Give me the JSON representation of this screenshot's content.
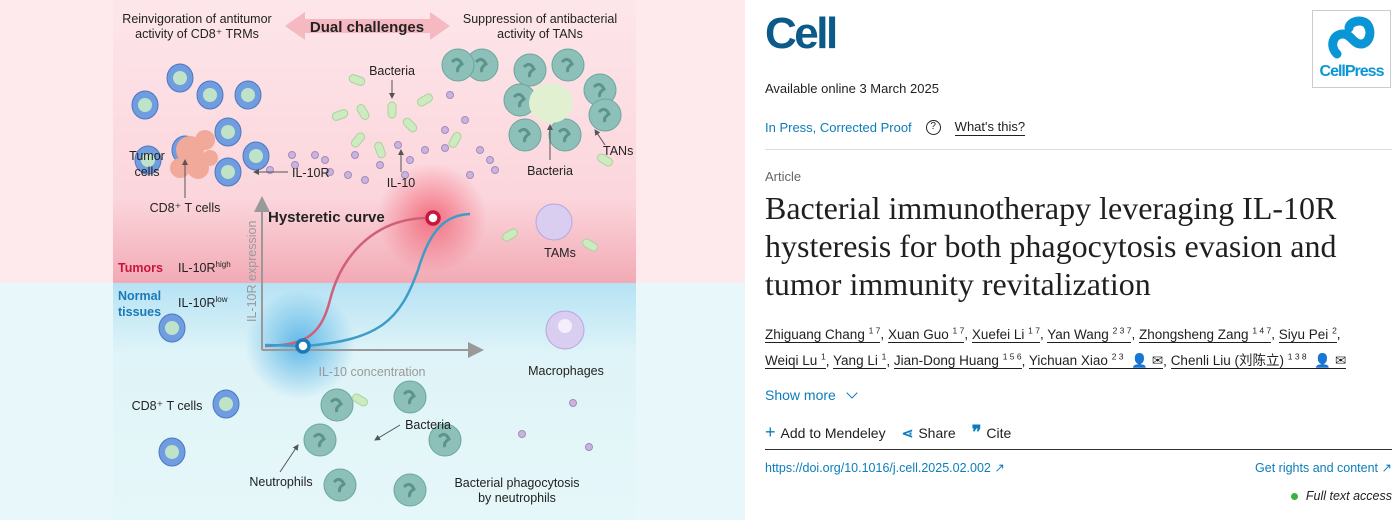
{
  "abstract": {
    "labels": {
      "left_heading_1": "Reinvigoration of antitumor",
      "left_heading_2": "activity of CD8⁺ TRMs",
      "center_heading": "Dual challenges",
      "right_heading_1": "Suppression of antibacterial",
      "right_heading_2": "activity of TANs",
      "bacteria_top": "Bacteria",
      "tumor_cells_1": "Tumor",
      "tumor_cells_2": "cells",
      "il10r": "IL-10R",
      "il10": "IL-10",
      "cd8_t_cells_top": "CD8⁺ T cells",
      "bacteria_tans": "Bacteria",
      "tans": "TANs",
      "tams": "TAMs",
      "hysteretic_curve": "Hysteretic curve",
      "y_axis": "IL-10R expression",
      "x_axis": "IL-10 concentration",
      "tumors": "Tumors",
      "il10r_high": "IL-10R",
      "il10r_high_sup": "high",
      "normal_1": "Normal",
      "normal_2": "tissues",
      "il10r_low": "IL-10R",
      "il10r_low_sup": "low",
      "macrophages": "Macrophages",
      "cd8_t_cells_bottom": "CD8⁺ T cells",
      "bacteria_bottom": "Bacteria",
      "neutrophils": "Neutrophils",
      "phagocytosis_1": "Bacterial phagocytosis",
      "phagocytosis_2": "by neutrophils"
    },
    "colors": {
      "tumor": "#c8163c",
      "normal": "#1a7ab8",
      "red_curve": "#d0607a",
      "blue_curve": "#3d9cc8"
    }
  },
  "journal": {
    "logo": "Cell",
    "publisher_logo": "CellPress",
    "logo_color": "#0b5a8a",
    "publisher_color": "#0a96d6"
  },
  "article": {
    "available": "Available online 3 March 2025",
    "status": "In Press, Corrected Proof",
    "help_icon": "question-circle-icon",
    "whats_this": "What's this?",
    "type": "Article",
    "title_lines": [
      "Bacterial immunotherapy leveraging IL-10R",
      "hysteresis for both phagocytosis evasion and",
      "tumor immunity revitalization"
    ],
    "authors": [
      {
        "name": "Zhiguang Chang",
        "sup": "1 7"
      },
      {
        "name": "Xuan Guo",
        "sup": "1 7"
      },
      {
        "name": "Xuefei Li",
        "sup": "1 7"
      },
      {
        "name": "Yan Wang",
        "sup": "2 3 7"
      },
      {
        "name": "Zhongsheng Zang",
        "sup": "1 4 7"
      },
      {
        "name": "Siyu Pei",
        "sup": "2"
      },
      {
        "name": "Weiqi Lu",
        "sup": "1"
      },
      {
        "name": "Yang Li",
        "sup": "1"
      },
      {
        "name": "Jian-Dong Huang",
        "sup": "1 5 6"
      },
      {
        "name": "Yichuan Xiao",
        "sup": "2 3",
        "icons": "👤 ✉"
      },
      {
        "name": "Chenli Liu (刘陈立)",
        "sup": "1 3 8",
        "icons": "👤 ✉"
      }
    ],
    "show_more": "Show more",
    "add_mendeley": "Add to Mendeley",
    "share": "Share",
    "cite": "Cite",
    "doi": "https://doi.org/10.1016/j.cell.2025.02.002",
    "rights": "Get rights and content",
    "access": "Full text access",
    "access_color": "#3cb043"
  }
}
